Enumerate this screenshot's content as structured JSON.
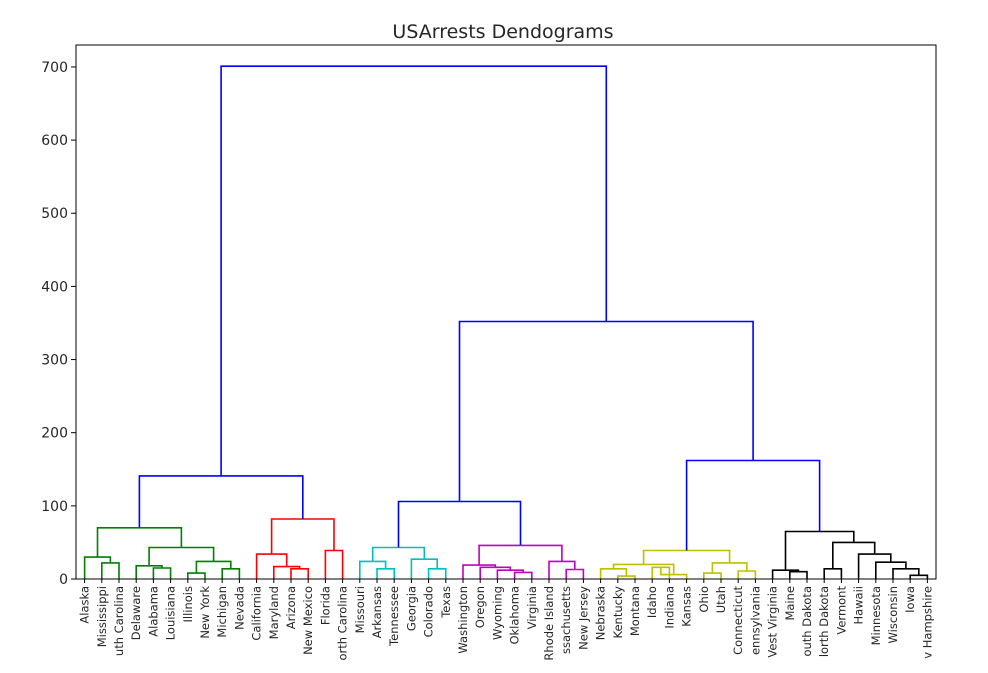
{
  "chart_data": {
    "type": "dendrogram",
    "title": "USArrests Dendograms",
    "xlabel": "",
    "ylabel": "",
    "ylim": [
      0,
      730
    ],
    "yticks": [
      0,
      100,
      200,
      300,
      400,
      500,
      600,
      700
    ],
    "ytick_labels": [
      "0",
      "100",
      "200",
      "300",
      "400",
      "500",
      "600",
      "700"
    ],
    "leaves": [
      "Alaska",
      "Mississippi",
      "South Carolina",
      "Delaware",
      "Alabama",
      "Louisiana",
      "Illinois",
      "New York",
      "Michigan",
      "Nevada",
      "California",
      "Maryland",
      "Arizona",
      "New Mexico",
      "Florida",
      "North Carolina",
      "Missouri",
      "Arkansas",
      "Tennessee",
      "Georgia",
      "Colorado",
      "Texas",
      "Washington",
      "Oregon",
      "Wyoming",
      "Oklahoma",
      "Virginia",
      "Rhode Island",
      "Massachusetts",
      "New Jersey",
      "Nebraska",
      "Kentucky",
      "Montana",
      "Idaho",
      "Indiana",
      "Kansas",
      "Ohio",
      "Utah",
      "Connecticut",
      "Pennsylvania",
      "West Virginia",
      "Maine",
      "South Dakota",
      "North Dakota",
      "Vermont",
      "Hawaii",
      "Minnesota",
      "Wisconsin",
      "Iowa",
      "New Hampshire"
    ],
    "leaf_labels_shown": [
      "Alaska",
      "Mississippi",
      "uth Carolina",
      "Delaware",
      "Alabama",
      "Louisiana",
      "Illinois",
      "New York",
      "Michigan",
      "Nevada",
      "California",
      "Maryland",
      "Arizona",
      "New Mexico",
      "Florida",
      "orth Carolina",
      "Missouri",
      "Arkansas",
      "Tennessee",
      "Georgia",
      "Colorado",
      "Texas",
      "Washington",
      "Oregon",
      "Wyoming",
      "Oklahoma",
      "Virginia",
      "Rhode Island",
      "ssachusetts",
      "New Jersey",
      "Nebraska",
      "Kentucky",
      "Montana",
      "Idaho",
      "Indiana",
      "Kansas",
      "Ohio",
      "Utah",
      "Connecticut",
      "ennsylvania",
      "Vest Virginia",
      "Maine",
      "outh Dakota",
      "lorth Dakota",
      "Vermont",
      "Hawaii",
      "Minnesota",
      "Wisconsin",
      "Iowa",
      "v Hampshire"
    ],
    "colors": {
      "green": "#008000",
      "red": "#ff0000",
      "cyan": "#00bfbf",
      "magenta": "#bf00bf",
      "olive": "#bfbf00",
      "black": "#000000",
      "blue": "#0000ff"
    },
    "merges": [
      {
        "a": 1,
        "b": 2,
        "h": 22,
        "color": "green"
      },
      {
        "a": 0,
        "b": "m0",
        "h": 30,
        "color": "green"
      },
      {
        "a": 4,
        "b": 5,
        "h": 15,
        "color": "green"
      },
      {
        "a": 3,
        "b": "m2",
        "h": 18,
        "color": "green"
      },
      {
        "a": 6,
        "b": 7,
        "h": 8,
        "color": "green"
      },
      {
        "a": 8,
        "b": 9,
        "h": 14,
        "color": "green"
      },
      {
        "a": "m4",
        "b": "m5",
        "h": 24,
        "color": "green"
      },
      {
        "a": "m3",
        "b": "m6",
        "h": 43,
        "color": "green"
      },
      {
        "a": "m1",
        "b": "m7",
        "h": 70,
        "color": "green"
      },
      {
        "a": 12,
        "b": 13,
        "h": 14,
        "color": "red"
      },
      {
        "a": 11,
        "b": "m9",
        "h": 17,
        "color": "red"
      },
      {
        "a": 10,
        "b": "m10",
        "h": 34,
        "color": "red"
      },
      {
        "a": 14,
        "b": 15,
        "h": 39,
        "color": "red"
      },
      {
        "a": "m11",
        "b": "m12",
        "h": 82,
        "color": "red"
      },
      {
        "a": "m8",
        "b": "m13",
        "h": 141,
        "color": "blue"
      },
      {
        "a": 17,
        "b": 18,
        "h": 14,
        "color": "cyan"
      },
      {
        "a": 16,
        "b": "m15",
        "h": 24,
        "color": "cyan"
      },
      {
        "a": 20,
        "b": 21,
        "h": 14,
        "color": "cyan"
      },
      {
        "a": 19,
        "b": "m17",
        "h": 27,
        "color": "cyan"
      },
      {
        "a": "m16",
        "b": "m18",
        "h": 43,
        "color": "cyan"
      },
      {
        "a": 25,
        "b": 26,
        "h": 9,
        "color": "magenta"
      },
      {
        "a": 24,
        "b": "m20",
        "h": 12,
        "color": "magenta"
      },
      {
        "a": 23,
        "b": "m21",
        "h": 16,
        "color": "magenta"
      },
      {
        "a": 22,
        "b": "m22",
        "h": 19,
        "color": "magenta"
      },
      {
        "a": 28,
        "b": 29,
        "h": 13,
        "color": "magenta"
      },
      {
        "a": 27,
        "b": "m24",
        "h": 24,
        "color": "magenta"
      },
      {
        "a": "m23",
        "b": "m25",
        "h": 46,
        "color": "magenta"
      },
      {
        "a": "m19",
        "b": "m26",
        "h": 106,
        "color": "blue"
      },
      {
        "a": 31,
        "b": 32,
        "h": 4,
        "color": "olive"
      },
      {
        "a": 30,
        "b": "m28",
        "h": 14,
        "color": "olive"
      },
      {
        "a": 33,
        "b": 34,
        "h": 16,
        "color": "olive"
      },
      {
        "a": "m30",
        "b": 35,
        "h": 6,
        "color": "olive"
      },
      {
        "a": "m29",
        "b": "m31",
        "h": 20,
        "color": "olive"
      },
      {
        "a": 36,
        "b": 37,
        "h": 8,
        "color": "olive"
      },
      {
        "a": 38,
        "b": 39,
        "h": 11,
        "color": "olive"
      },
      {
        "a": "m33",
        "b": "m34",
        "h": 22,
        "color": "olive"
      },
      {
        "a": "m32",
        "b": "m35",
        "h": 39,
        "color": "olive"
      },
      {
        "a": 41,
        "b": 42,
        "h": 10,
        "color": "black"
      },
      {
        "a": 40,
        "b": "m37",
        "h": 12,
        "color": "black"
      },
      {
        "a": 43,
        "b": 44,
        "h": 14,
        "color": "black"
      },
      {
        "a": 48,
        "b": 49,
        "h": 5,
        "color": "black"
      },
      {
        "a": 47,
        "b": "m40",
        "h": 14,
        "color": "black"
      },
      {
        "a": 46,
        "b": "m41",
        "h": 23,
        "color": "black"
      },
      {
        "a": 45,
        "b": "m42",
        "h": 34,
        "color": "black"
      },
      {
        "a": "m39",
        "b": "m43",
        "h": 50,
        "color": "black"
      },
      {
        "a": "m38",
        "b": "m44",
        "h": 65,
        "color": "black"
      },
      {
        "a": "m36",
        "b": "m45",
        "h": 162,
        "color": "blue"
      },
      {
        "a": "m27",
        "b": "m46",
        "h": 352,
        "color": "blue"
      },
      {
        "a": "m14",
        "b": "m47",
        "h": 701,
        "color": "blue"
      }
    ]
  }
}
